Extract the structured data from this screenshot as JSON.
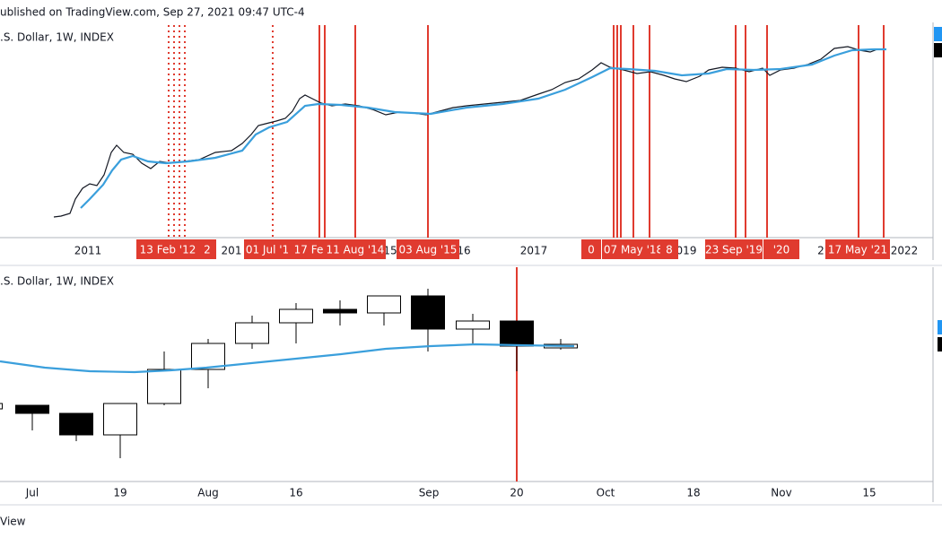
{
  "header": {
    "published": "ublished on TradingView.com, Sep 27, 2021 09:47 UTC-4"
  },
  "top_panel": {
    "symbol": ".S. Dollar, 1W, INDEX",
    "x_labels": [
      "2011",
      "201",
      "15",
      "16",
      "2017",
      "019",
      "2",
      "2022"
    ],
    "flags": [
      "13 Feb '12",
      "2",
      "01 Jul '1",
      "17 Fe",
      "11 Aug '14",
      "03 Aug '15",
      "0",
      "07 May '18",
      "8",
      "23 Sep '19",
      "'20",
      "17 May '21"
    ]
  },
  "bottom_panel": {
    "symbol": ".S. Dollar, 1W, INDEX",
    "x_labels": [
      "Jul",
      "19",
      "Aug",
      "16",
      "Sep",
      "20",
      "Oct",
      "18",
      "Nov",
      "15"
    ]
  },
  "footer": {
    "text": "View"
  }
}
